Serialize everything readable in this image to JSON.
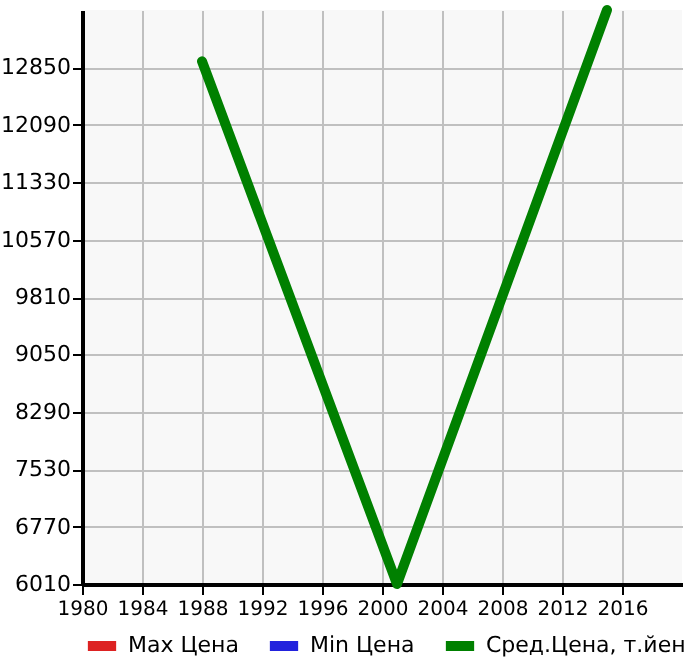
{
  "chart_data": {
    "type": "line",
    "x": [
      1988,
      2001,
      2015
    ],
    "series": [
      {
        "name": "Max Цена",
        "color": "#dd2222",
        "values": [
          null,
          null,
          null
        ]
      },
      {
        "name": "Min Цена",
        "color": "#2222dd",
        "values": [
          null,
          null,
          null
        ]
      },
      {
        "name": "Сред.Цена, т.йен",
        "color": "#008000",
        "values": [
          12930,
          6010,
          13610
        ]
      }
    ],
    "xlim": [
      1980,
      2020
    ],
    "xticks": [
      1980,
      1984,
      1988,
      1992,
      1996,
      2000,
      2004,
      2008,
      2012,
      2016
    ],
    "ylim": [
      6010,
      13610
    ],
    "yticks": [
      6010,
      6770,
      7530,
      8290,
      9050,
      9810,
      10570,
      11330,
      12090,
      12850
    ],
    "grid": true,
    "legend": "bottom",
    "marker": "none",
    "line_style": "solid"
  }
}
